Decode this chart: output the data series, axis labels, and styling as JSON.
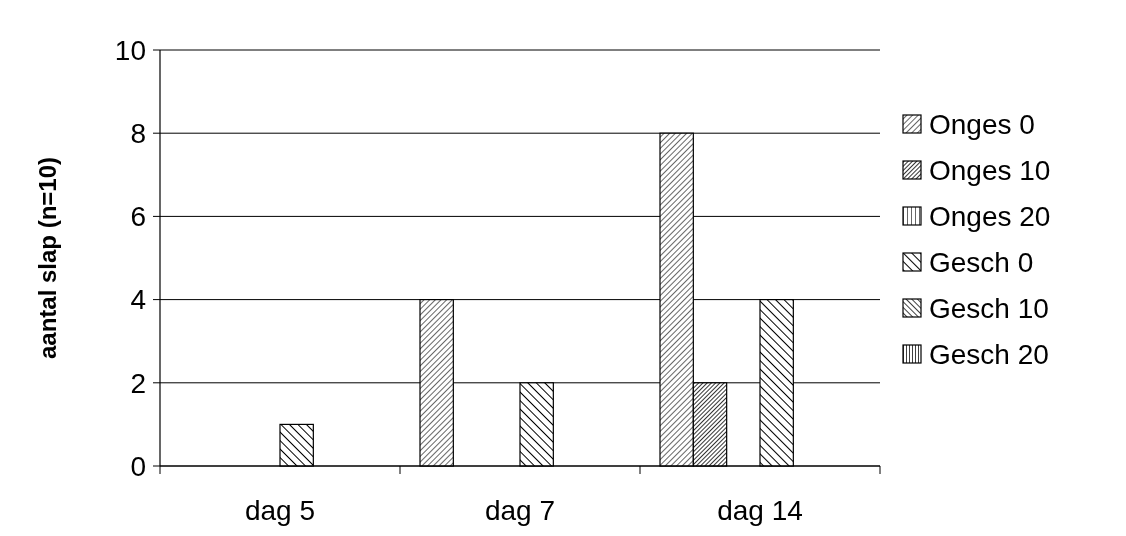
{
  "chart_data": {
    "type": "bar",
    "ylabel": "aantal slap (n=10)",
    "categories": [
      "dag 5",
      "dag 7",
      "dag 14"
    ],
    "series": [
      {
        "name": "Onges 0",
        "color": "#000000",
        "values": [
          0,
          4,
          8
        ]
      },
      {
        "name": "Onges 10",
        "color": "#000000",
        "values": [
          0,
          0,
          2
        ]
      },
      {
        "name": "Onges 20",
        "color": "#000000",
        "values": [
          0,
          0,
          0
        ]
      },
      {
        "name": "Gesch 0",
        "color": "#000000",
        "values": [
          1,
          2,
          4
        ]
      },
      {
        "name": "Gesch 10",
        "color": "#000000",
        "values": [
          0,
          0,
          0
        ]
      },
      {
        "name": "Gesch 20",
        "color": "#000000",
        "values": [
          0,
          0,
          0
        ]
      }
    ],
    "ylim": [
      0,
      10
    ],
    "yticks": [
      0,
      2,
      4,
      6,
      8,
      10
    ],
    "grid": "y",
    "legend": "right"
  }
}
